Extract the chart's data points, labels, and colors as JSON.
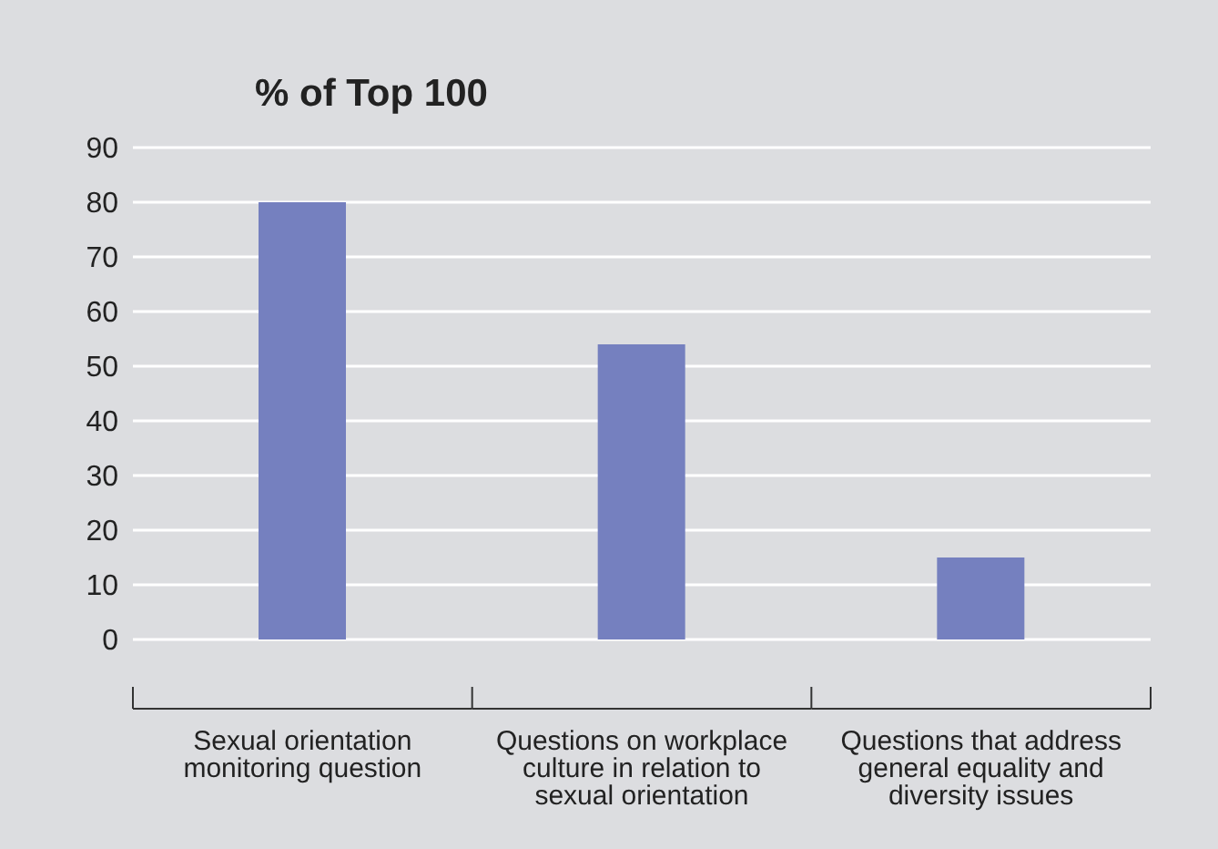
{
  "chart_data": {
    "type": "bar",
    "title": "% of Top 100",
    "categories": [
      "Sexual orientation monitoring question",
      "Questions on workplace culture in relation to sexual orientation",
      "Questions that address general equality and diversity issues"
    ],
    "values": [
      80,
      54,
      15
    ],
    "color": "#7580bf",
    "ylim": [
      0,
      90
    ],
    "yticks": [
      0,
      10,
      20,
      30,
      40,
      50,
      60,
      70,
      80,
      90
    ],
    "grid": "y"
  }
}
